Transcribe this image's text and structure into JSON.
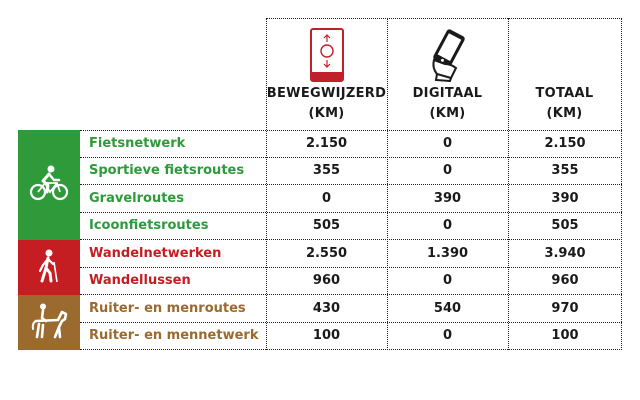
{
  "colors": {
    "green": "#2e9a3a",
    "red": "#c41d22",
    "brown": "#9b6a2f",
    "sign_red": "#c01f2c"
  },
  "columns": [
    {
      "icon": "signpost-icon",
      "line1": "BEWEGWIJZERD",
      "line2": "(KM)"
    },
    {
      "icon": "smartphone-icon",
      "line1": "DIGITAAL",
      "line2": "(KM)"
    },
    {
      "icon": "",
      "line1": "TOTAAL",
      "line2": "(KM)"
    }
  ],
  "groups": [
    {
      "icon": "cyclist-icon",
      "color": "#2e9a3a"
    },
    {
      "icon": "hiker-icon",
      "color": "#c41d22"
    },
    {
      "icon": "horse-rider-icon",
      "color": "#9b6a2f"
    }
  ],
  "rows": [
    {
      "label": "Fietsnetwerk",
      "bewegwijzerd": "2.150",
      "digitaal": "0",
      "totaal": "2.150"
    },
    {
      "label": "Sportieve fietsroutes",
      "bewegwijzerd": "355",
      "digitaal": "0",
      "totaal": "355"
    },
    {
      "label": "Gravelroutes",
      "bewegwijzerd": "0",
      "digitaal": "390",
      "totaal": "390"
    },
    {
      "label": "Icoonfietsroutes",
      "bewegwijzerd": "505",
      "digitaal": "0",
      "totaal": "505"
    },
    {
      "label": "Wandelnetwerken",
      "bewegwijzerd": "2.550",
      "digitaal": "1.390",
      "totaal": "3.940"
    },
    {
      "label": "Wandellussen",
      "bewegwijzerd": "960",
      "digitaal": "0",
      "totaal": "960"
    },
    {
      "label": "Ruiter- en menroutes",
      "bewegwijzerd": "430",
      "digitaal": "540",
      "totaal": "970"
    },
    {
      "label": "Ruiter- en mennetwerk",
      "bewegwijzerd": "100",
      "digitaal": "0",
      "totaal": "100"
    }
  ]
}
